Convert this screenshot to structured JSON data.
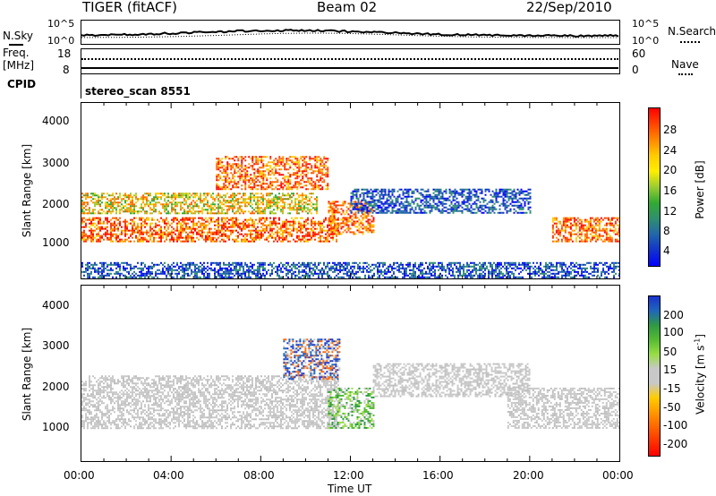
{
  "header": {
    "station": "TIGER (fitACF)",
    "beam": "Beam 02",
    "date": "22/Sep/2010",
    "cpid_label": "CPID",
    "cpid_value": "stereo_scan 8551"
  },
  "nsky_panel": {
    "left_label": "N.Sky",
    "right_label": "N.Search",
    "ticks_left": [
      "10^5",
      "10^0"
    ],
    "ticks_right": [
      "10^5",
      "10^0"
    ]
  },
  "freq_panel": {
    "left_label_1": "Freq.",
    "left_label_2": "[MHz]",
    "right_label": "Nave",
    "ticks_left": [
      "18",
      "8"
    ],
    "ticks_right": [
      "60",
      "0"
    ]
  },
  "power_panel": {
    "ylabel": "Slant Range [km]",
    "yticks": [
      "4000",
      "3000",
      "2000",
      "1000"
    ],
    "colorbar_label": "Power [dB]",
    "colorbar_ticks": [
      "28",
      "24",
      "20",
      "16",
      "12",
      "8",
      "4"
    ],
    "colorbar_colors": [
      "#ff0000",
      "#ff4400",
      "#ff8800",
      "#ffcc00",
      "#ffee00",
      "#99cc33",
      "#33aa33",
      "#2f8f6f",
      "#2266aa",
      "#1133cc",
      "#0000ff"
    ]
  },
  "velocity_panel": {
    "ylabel": "Slant Range [km]",
    "yticks": [
      "4000",
      "3000",
      "2000",
      "1000"
    ],
    "colorbar_label": "Velocity [m s",
    "colorbar_sup": "-1",
    "colorbar_label_end": "]",
    "colorbar_ticks": [
      "200",
      "100",
      "50",
      "15",
      "-15",
      "-50",
      "-100",
      "-200"
    ],
    "colorbar_colors": [
      "#1a33cc",
      "#1f66bb",
      "#2f9944",
      "#55bb33",
      "#99dd44",
      "#c8c8c8",
      "#c8c8c8",
      "#ffcc00",
      "#ff9900",
      "#ff6600",
      "#ff3300",
      "#ff0000"
    ]
  },
  "xaxis": {
    "label": "Time UT",
    "ticks": [
      "00:00",
      "04:00",
      "08:00",
      "12:00",
      "16:00",
      "20:00",
      "00:00"
    ]
  },
  "chart_data": [
    {
      "type": "heatmap",
      "title": "Power [dB]",
      "xlabel": "Time UT",
      "ylabel": "Slant Range [km]",
      "xlim": [
        0,
        24
      ],
      "ylim": [
        200,
        4500
      ],
      "zlim": [
        0,
        32
      ],
      "features": [
        {
          "hours": [
            0,
            11.5
          ],
          "range_km": [
            1100,
            1700
          ],
          "level": "high"
        },
        {
          "hours": [
            0,
            10.5
          ],
          "range_km": [
            1800,
            2300
          ],
          "level": "medium"
        },
        {
          "hours": [
            6,
            11
          ],
          "range_km": [
            2400,
            3200
          ],
          "level": "high"
        },
        {
          "hours": [
            11,
            13
          ],
          "range_km": [
            1300,
            2100
          ],
          "level": "high"
        },
        {
          "hours": [
            12,
            20
          ],
          "range_km": [
            1800,
            2400
          ],
          "level": "low"
        },
        {
          "hours": [
            21,
            24
          ],
          "range_km": [
            1100,
            1700
          ],
          "level": "high"
        },
        {
          "hours": [
            0,
            24
          ],
          "range_km": [
            200,
            600
          ],
          "level": "low"
        }
      ]
    },
    {
      "type": "heatmap",
      "title": "Velocity [m s-1]",
      "xlabel": "Time UT",
      "ylabel": "Slant Range [km]",
      "xlim": [
        0,
        24
      ],
      "ylim": [
        200,
        4500
      ],
      "zlim": [
        -200,
        200
      ],
      "features": [
        {
          "hours": [
            0,
            11.5
          ],
          "range_km": [
            1000,
            2300
          ],
          "level": "near-zero"
        },
        {
          "hours": [
            9,
            11.5
          ],
          "range_km": [
            2200,
            3200
          ],
          "level": "positive"
        },
        {
          "hours": [
            11,
            13
          ],
          "range_km": [
            1000,
            2000
          ],
          "level": "positive-low"
        },
        {
          "hours": [
            13,
            20
          ],
          "range_km": [
            1800,
            2600
          ],
          "level": "near-zero"
        },
        {
          "hours": [
            19,
            24
          ],
          "range_km": [
            1000,
            2000
          ],
          "level": "near-zero"
        }
      ]
    }
  ]
}
